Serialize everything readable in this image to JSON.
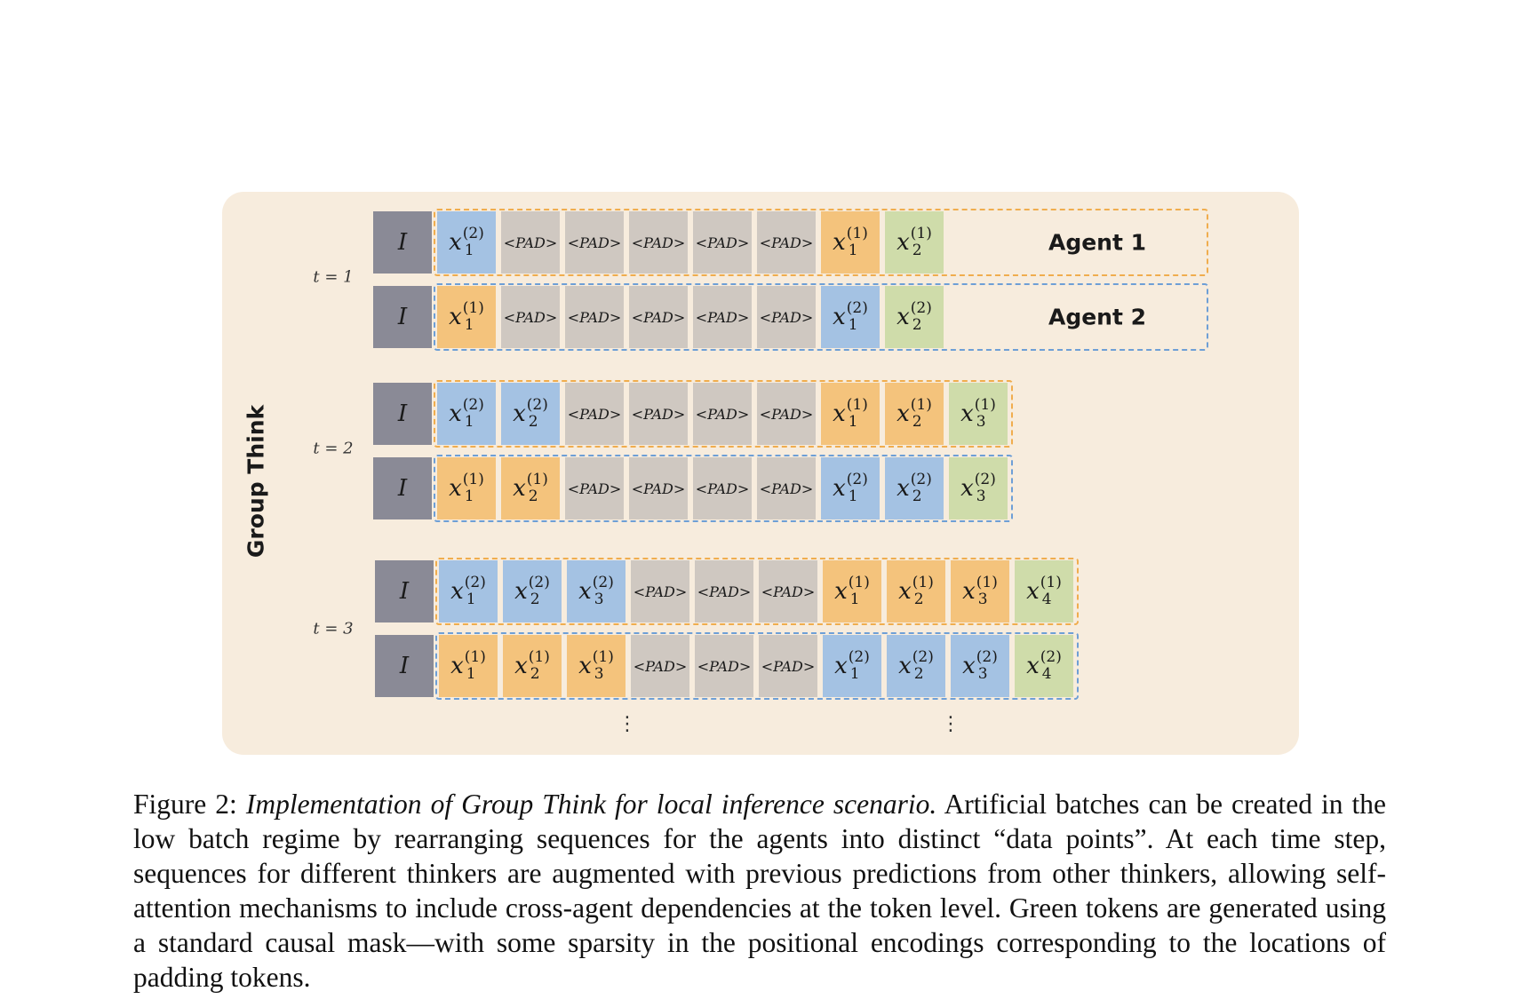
{
  "diagram": {
    "side_title": "Group Think",
    "pad_label": "<PAD>",
    "instruction_label": "I",
    "ellipsis": "⋮",
    "colors": {
      "panel": "#f7ecdd",
      "instruction": "#8a8a96",
      "pad": "#cfc8c1",
      "blue": "#a4c2e3",
      "orange": "#f4c37c",
      "green": "#cfdcaa",
      "frame_orange": "#f0ad4e",
      "frame_blue": "#6e9fd6"
    },
    "steps": [
      {
        "label": "t = 1",
        "rows": [
          {
            "agent_label": "Agent 1",
            "frame": "orange",
            "tokens": [
              {
                "kind": "I"
              },
              {
                "kind": "tok",
                "color": "blue",
                "sub": "1",
                "sup": "(2)"
              },
              {
                "kind": "pad"
              },
              {
                "kind": "pad"
              },
              {
                "kind": "pad"
              },
              {
                "kind": "pad"
              },
              {
                "kind": "pad"
              },
              {
                "kind": "tok",
                "color": "orange",
                "sub": "1",
                "sup": "(1)"
              },
              {
                "kind": "tok",
                "color": "green",
                "sub": "2",
                "sup": "(1)"
              }
            ]
          },
          {
            "agent_label": "Agent 2",
            "frame": "blue",
            "tokens": [
              {
                "kind": "I"
              },
              {
                "kind": "tok",
                "color": "orange",
                "sub": "1",
                "sup": "(1)"
              },
              {
                "kind": "pad"
              },
              {
                "kind": "pad"
              },
              {
                "kind": "pad"
              },
              {
                "kind": "pad"
              },
              {
                "kind": "pad"
              },
              {
                "kind": "tok",
                "color": "blue",
                "sub": "1",
                "sup": "(2)"
              },
              {
                "kind": "tok",
                "color": "green",
                "sub": "2",
                "sup": "(2)"
              }
            ]
          }
        ]
      },
      {
        "label": "t = 2",
        "rows": [
          {
            "frame": "orange",
            "tokens": [
              {
                "kind": "I"
              },
              {
                "kind": "tok",
                "color": "blue",
                "sub": "1",
                "sup": "(2)"
              },
              {
                "kind": "tok",
                "color": "blue",
                "sub": "2",
                "sup": "(2)"
              },
              {
                "kind": "pad"
              },
              {
                "kind": "pad"
              },
              {
                "kind": "pad"
              },
              {
                "kind": "pad"
              },
              {
                "kind": "tok",
                "color": "orange",
                "sub": "1",
                "sup": "(1)"
              },
              {
                "kind": "tok",
                "color": "orange",
                "sub": "2",
                "sup": "(1)"
              },
              {
                "kind": "tok",
                "color": "green",
                "sub": "3",
                "sup": "(1)"
              }
            ]
          },
          {
            "frame": "blue",
            "tokens": [
              {
                "kind": "I"
              },
              {
                "kind": "tok",
                "color": "orange",
                "sub": "1",
                "sup": "(1)"
              },
              {
                "kind": "tok",
                "color": "orange",
                "sub": "2",
                "sup": "(1)"
              },
              {
                "kind": "pad"
              },
              {
                "kind": "pad"
              },
              {
                "kind": "pad"
              },
              {
                "kind": "pad"
              },
              {
                "kind": "tok",
                "color": "blue",
                "sub": "1",
                "sup": "(2)"
              },
              {
                "kind": "tok",
                "color": "blue",
                "sub": "2",
                "sup": "(2)"
              },
              {
                "kind": "tok",
                "color": "green",
                "sub": "3",
                "sup": "(2)"
              }
            ]
          }
        ]
      },
      {
        "label": "t = 3",
        "rows": [
          {
            "frame": "orange",
            "tokens": [
              {
                "kind": "I"
              },
              {
                "kind": "tok",
                "color": "blue",
                "sub": "1",
                "sup": "(2)"
              },
              {
                "kind": "tok",
                "color": "blue",
                "sub": "2",
                "sup": "(2)"
              },
              {
                "kind": "tok",
                "color": "blue",
                "sub": "3",
                "sup": "(2)"
              },
              {
                "kind": "pad"
              },
              {
                "kind": "pad"
              },
              {
                "kind": "pad"
              },
              {
                "kind": "tok",
                "color": "orange",
                "sub": "1",
                "sup": "(1)"
              },
              {
                "kind": "tok",
                "color": "orange",
                "sub": "2",
                "sup": "(1)"
              },
              {
                "kind": "tok",
                "color": "orange",
                "sub": "3",
                "sup": "(1)"
              },
              {
                "kind": "tok",
                "color": "green",
                "sub": "4",
                "sup": "(1)"
              }
            ]
          },
          {
            "frame": "blue",
            "tokens": [
              {
                "kind": "I"
              },
              {
                "kind": "tok",
                "color": "orange",
                "sub": "1",
                "sup": "(1)"
              },
              {
                "kind": "tok",
                "color": "orange",
                "sub": "2",
                "sup": "(1)"
              },
              {
                "kind": "tok",
                "color": "orange",
                "sub": "3",
                "sup": "(1)"
              },
              {
                "kind": "pad"
              },
              {
                "kind": "pad"
              },
              {
                "kind": "pad"
              },
              {
                "kind": "tok",
                "color": "blue",
                "sub": "1",
                "sup": "(2)"
              },
              {
                "kind": "tok",
                "color": "blue",
                "sub": "2",
                "sup": "(2)"
              },
              {
                "kind": "tok",
                "color": "blue",
                "sub": "3",
                "sup": "(2)"
              },
              {
                "kind": "tok",
                "color": "green",
                "sub": "4",
                "sup": "(2)"
              }
            ]
          }
        ]
      }
    ]
  },
  "caption": {
    "label": "Figure 2:",
    "title": "Implementation of Group Think for local inference scenario.",
    "body": "Artificial batches can be created in the low batch regime by rearranging sequences for the agents into distinct “data points”. At each time step, sequences for different thinkers are augmented with previous predictions from other thinkers, allowing self-attention mechanisms to include cross-agent dependencies at the token level. Green tokens are generated using a standard causal mask—with some sparsity in the positional encodings corresponding to the locations of padding tokens."
  }
}
